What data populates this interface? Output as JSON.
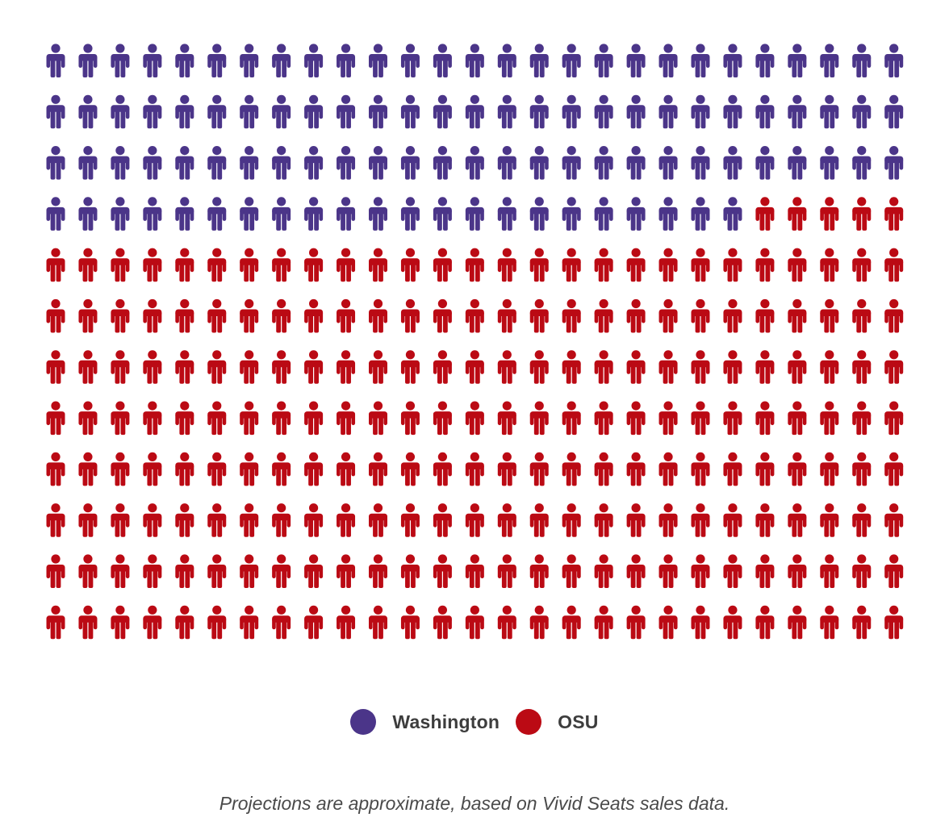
{
  "chart_data": {
    "type": "pictogram",
    "unit_icon": "person-icon",
    "series": [
      {
        "name": "Washington",
        "count": 103,
        "color": "#4b3589"
      },
      {
        "name": "OSU",
        "count": 221,
        "color": "#bb0a14"
      }
    ],
    "total_icons": 324,
    "grid": {
      "rows": 12,
      "columns": 27
    }
  },
  "legend": {
    "items": [
      {
        "label": "Washington",
        "color": "#4b3589"
      },
      {
        "label": "OSU",
        "color": "#bb0a14"
      }
    ]
  },
  "footnote": "Projections are approximate, based on Vivid Seats sales data."
}
